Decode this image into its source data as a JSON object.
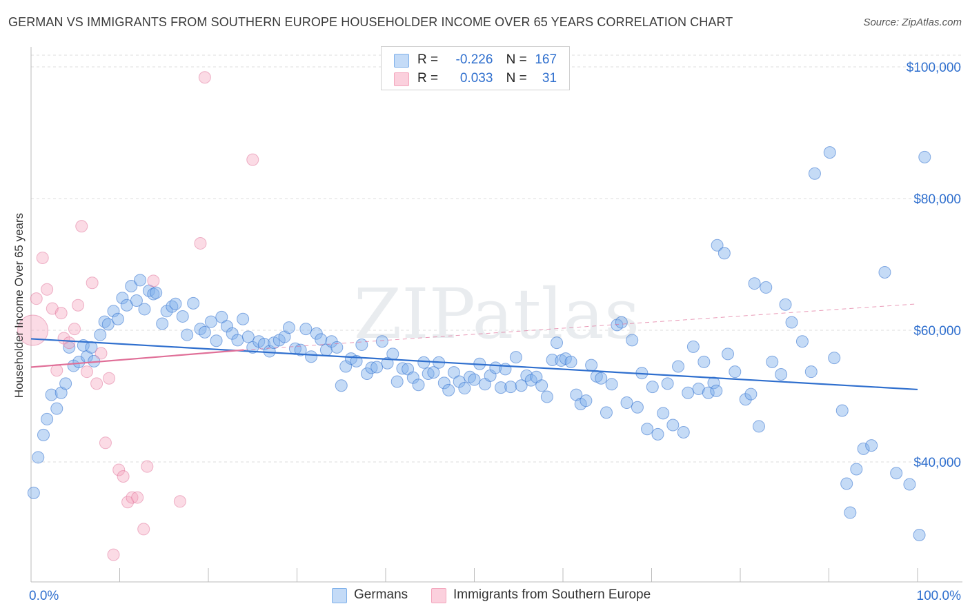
{
  "title": "GERMAN VS IMMIGRANTS FROM SOUTHERN EUROPE HOUSEHOLDER INCOME OVER 65 YEARS CORRELATION CHART",
  "source": "Source: ZipAtlas.com",
  "watermark": "ZIPatlas",
  "legend": {
    "row1": {
      "r_label": "R =",
      "r_value": "-0.226",
      "n_label": "N =",
      "n_value": "167"
    },
    "row2": {
      "r_label": "R =",
      "r_value": "0.033",
      "n_label": "N =",
      "n_value": "31"
    }
  },
  "bottom_legend": {
    "germans": "Germans",
    "immigrants": "Immigrants from Southern Europe"
  },
  "chart_data": {
    "type": "scatter",
    "title": "GERMAN VS IMMIGRANTS FROM SOUTHERN EUROPE HOUSEHOLDER INCOME OVER 65 YEARS CORRELATION CHART",
    "xlabel": "",
    "ylabel": "Householder Income Over 65 years",
    "xlim": [
      0,
      100
    ],
    "ylim": [
      20000,
      102000
    ],
    "x_tick_labels": [
      "0.0%",
      "100.0%"
    ],
    "y_ticks": [
      40000,
      60000,
      80000,
      100000
    ],
    "y_tick_labels": [
      "$40,000",
      "$60,000",
      "$80,000",
      "$100,000"
    ],
    "colors": {
      "germans": "#7fb0ea",
      "germans_line": "#2f6fce",
      "immigrants": "#f4a6bd",
      "immigrants_line": "#e06f98"
    },
    "series": [
      {
        "name": "Germans",
        "r": -0.226,
        "n": 167,
        "trend": [
          [
            0,
            58700
          ],
          [
            100,
            51000
          ]
        ],
        "points": [
          [
            0.3,
            35300
          ],
          [
            0.8,
            40700
          ],
          [
            1.4,
            44100
          ],
          [
            1.8,
            46500
          ],
          [
            2.3,
            50200
          ],
          [
            2.9,
            48100
          ],
          [
            3.4,
            50500
          ],
          [
            3.9,
            51900
          ],
          [
            4.3,
            57400
          ],
          [
            4.8,
            54600
          ],
          [
            5.4,
            55200
          ],
          [
            5.9,
            57700
          ],
          [
            6.3,
            56000
          ],
          [
            6.8,
            57400
          ],
          [
            7.1,
            55300
          ],
          [
            7.8,
            59300
          ],
          [
            8.3,
            61300
          ],
          [
            8.7,
            60900
          ],
          [
            9.3,
            62900
          ],
          [
            9.8,
            61700
          ],
          [
            10.3,
            64900
          ],
          [
            10.8,
            63800
          ],
          [
            11.3,
            66700
          ],
          [
            11.9,
            64500
          ],
          [
            12.3,
            67600
          ],
          [
            12.8,
            63200
          ],
          [
            13.3,
            66000
          ],
          [
            13.8,
            65500
          ],
          [
            14.1,
            65700
          ],
          [
            14.8,
            61000
          ],
          [
            15.3,
            62900
          ],
          [
            15.9,
            63600
          ],
          [
            16.3,
            64000
          ],
          [
            17.1,
            62100
          ],
          [
            17.6,
            59300
          ],
          [
            18.3,
            64100
          ],
          [
            19.1,
            60200
          ],
          [
            19.6,
            59700
          ],
          [
            20.3,
            61300
          ],
          [
            20.9,
            58400
          ],
          [
            21.5,
            62000
          ],
          [
            22.1,
            60600
          ],
          [
            22.7,
            59500
          ],
          [
            23.3,
            58500
          ],
          [
            23.9,
            61700
          ],
          [
            24.5,
            59000
          ],
          [
            25.0,
            57400
          ],
          [
            25.7,
            58300
          ],
          [
            26.3,
            57900
          ],
          [
            26.9,
            56800
          ],
          [
            27.4,
            58100
          ],
          [
            28.0,
            58500
          ],
          [
            28.6,
            59000
          ],
          [
            29.1,
            60400
          ],
          [
            29.8,
            57200
          ],
          [
            30.4,
            57000
          ],
          [
            31.0,
            60200
          ],
          [
            31.6,
            56000
          ],
          [
            32.2,
            59500
          ],
          [
            32.7,
            58600
          ],
          [
            33.3,
            57000
          ],
          [
            33.9,
            58300
          ],
          [
            34.5,
            57400
          ],
          [
            35.0,
            51600
          ],
          [
            35.5,
            54500
          ],
          [
            36.1,
            55700
          ],
          [
            36.7,
            55300
          ],
          [
            37.3,
            57800
          ],
          [
            37.9,
            53400
          ],
          [
            38.4,
            54300
          ],
          [
            39.0,
            54400
          ],
          [
            39.6,
            58300
          ],
          [
            40.2,
            55000
          ],
          [
            40.8,
            56400
          ],
          [
            41.3,
            52200
          ],
          [
            41.9,
            54200
          ],
          [
            42.5,
            54100
          ],
          [
            43.1,
            52800
          ],
          [
            43.7,
            51700
          ],
          [
            44.3,
            55100
          ],
          [
            44.8,
            53400
          ],
          [
            45.4,
            53600
          ],
          [
            46.0,
            55100
          ],
          [
            46.6,
            52000
          ],
          [
            47.1,
            50900
          ],
          [
            47.7,
            53600
          ],
          [
            48.3,
            52200
          ],
          [
            48.9,
            51200
          ],
          [
            49.5,
            52900
          ],
          [
            50.0,
            52500
          ],
          [
            50.6,
            54900
          ],
          [
            51.2,
            51800
          ],
          [
            51.8,
            53100
          ],
          [
            52.4,
            54300
          ],
          [
            53.0,
            51300
          ],
          [
            53.5,
            54100
          ],
          [
            54.1,
            51400
          ],
          [
            54.7,
            55900
          ],
          [
            55.3,
            51600
          ],
          [
            55.9,
            53100
          ],
          [
            56.4,
            52400
          ],
          [
            57.0,
            52900
          ],
          [
            57.6,
            51600
          ],
          [
            58.2,
            49900
          ],
          [
            58.8,
            55500
          ],
          [
            59.3,
            58100
          ],
          [
            59.8,
            55400
          ],
          [
            60.3,
            55700
          ],
          [
            60.9,
            55200
          ],
          [
            61.5,
            50200
          ],
          [
            62.0,
            48800
          ],
          [
            62.6,
            49300
          ],
          [
            63.2,
            54700
          ],
          [
            63.8,
            53000
          ],
          [
            64.3,
            52700
          ],
          [
            64.9,
            47500
          ],
          [
            65.5,
            51800
          ],
          [
            66.1,
            60800
          ],
          [
            66.6,
            61200
          ],
          [
            67.2,
            49000
          ],
          [
            67.8,
            58500
          ],
          [
            68.4,
            48300
          ],
          [
            68.9,
            53500
          ],
          [
            69.5,
            45000
          ],
          [
            70.1,
            51400
          ],
          [
            70.7,
            44200
          ],
          [
            71.3,
            47400
          ],
          [
            71.8,
            51900
          ],
          [
            72.4,
            45600
          ],
          [
            73.0,
            54500
          ],
          [
            73.6,
            44500
          ],
          [
            74.1,
            50500
          ],
          [
            74.7,
            57500
          ],
          [
            75.3,
            51100
          ],
          [
            75.9,
            55200
          ],
          [
            76.4,
            50500
          ],
          [
            77.0,
            52000
          ],
          [
            77.3,
            50800
          ],
          [
            77.4,
            72900
          ],
          [
            78.2,
            71700
          ],
          [
            78.6,
            56400
          ],
          [
            79.4,
            53700
          ],
          [
            80.6,
            49500
          ],
          [
            81.2,
            50300
          ],
          [
            81.6,
            67100
          ],
          [
            82.1,
            45400
          ],
          [
            82.9,
            66500
          ],
          [
            83.6,
            55200
          ],
          [
            84.6,
            53300
          ],
          [
            85.1,
            63900
          ],
          [
            85.8,
            61200
          ],
          [
            87.0,
            58300
          ],
          [
            88.0,
            53700
          ],
          [
            88.4,
            83800
          ],
          [
            90.1,
            87000
          ],
          [
            90.6,
            55800
          ],
          [
            91.5,
            47800
          ],
          [
            92.0,
            36700
          ],
          [
            92.4,
            32300
          ],
          [
            93.1,
            38900
          ],
          [
            93.9,
            42000
          ],
          [
            94.8,
            42500
          ],
          [
            96.3,
            68800
          ],
          [
            97.6,
            38300
          ],
          [
            99.1,
            36600
          ],
          [
            100.2,
            28900
          ],
          [
            100.8,
            86300
          ]
        ]
      },
      {
        "name": "Immigrants from Southern Europe",
        "r": 0.033,
        "n": 31,
        "trend": [
          [
            0,
            54400
          ],
          [
            24,
            57000
          ]
        ],
        "trend_dashed": [
          [
            24,
            57000
          ],
          [
            100,
            64000
          ]
        ],
        "points": [
          [
            0.6,
            64800
          ],
          [
            1.3,
            71000
          ],
          [
            1.8,
            66200
          ],
          [
            2.4,
            63300
          ],
          [
            2.9,
            53900
          ],
          [
            3.4,
            62600
          ],
          [
            3.7,
            58800
          ],
          [
            4.3,
            58100
          ],
          [
            4.9,
            60200
          ],
          [
            5.3,
            63800
          ],
          [
            5.7,
            75800
          ],
          [
            6.3,
            53700
          ],
          [
            6.9,
            67200
          ],
          [
            7.4,
            51900
          ],
          [
            7.9,
            56500
          ],
          [
            8.4,
            42900
          ],
          [
            8.8,
            52700
          ],
          [
            9.3,
            25900
          ],
          [
            9.9,
            38800
          ],
          [
            10.4,
            37800
          ],
          [
            10.9,
            33900
          ],
          [
            11.4,
            34600
          ],
          [
            12.0,
            34600
          ],
          [
            12.7,
            29800
          ],
          [
            13.1,
            39300
          ],
          [
            13.8,
            67500
          ],
          [
            16.8,
            34000
          ],
          [
            19.1,
            73200
          ],
          [
            19.6,
            98400
          ],
          [
            25.0,
            85900
          ],
          [
            0.2,
            60000
          ]
        ]
      }
    ]
  }
}
